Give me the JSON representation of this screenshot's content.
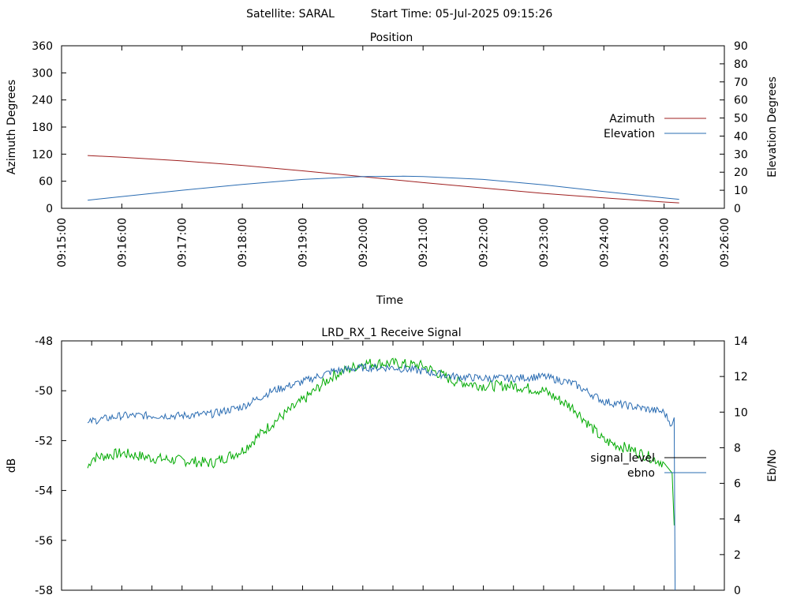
{
  "header": {
    "satellite": "Satellite: SARAL",
    "start_time": "Start Time: 05-Jul-2025 09:15:26"
  },
  "chart_data": [
    {
      "type": "line",
      "title": "Position",
      "xlabel": "Time",
      "ylabel": "Azimuth Degrees",
      "y2label": "Elevation Degrees",
      "xlim": [
        "09:15:00",
        "09:26:00"
      ],
      "x_ticks": [
        "09:15:00",
        "09:16:00",
        "09:17:00",
        "09:18:00",
        "09:19:00",
        "09:20:00",
        "09:21:00",
        "09:22:00",
        "09:23:00",
        "09:24:00",
        "09:25:00",
        "09:26:00"
      ],
      "ylim": [
        0,
        360
      ],
      "y_ticks": [
        0,
        60,
        120,
        180,
        240,
        300,
        360
      ],
      "y2lim": [
        0,
        90
      ],
      "y2_ticks": [
        0,
        10,
        20,
        30,
        40,
        50,
        60,
        70,
        80,
        90
      ],
      "legend_position": "right",
      "series": [
        {
          "name": "Azimuth",
          "axis": "left",
          "color": "#9f1f1f",
          "x": [
            "09:15:26",
            "09:16:00",
            "09:17:00",
            "09:18:00",
            "09:19:00",
            "09:20:00",
            "09:21:00",
            "09:22:00",
            "09:23:00",
            "09:24:00",
            "09:25:00",
            "09:25:15"
          ],
          "values": [
            117,
            113,
            105,
            95,
            83,
            70,
            57,
            45,
            33,
            23,
            14,
            12
          ]
        },
        {
          "name": "Elevation",
          "axis": "right",
          "color": "#2a6cb2",
          "x": [
            "09:15:26",
            "09:16:00",
            "09:17:00",
            "09:18:00",
            "09:19:00",
            "09:20:00",
            "09:20:40",
            "09:21:00",
            "09:22:00",
            "09:23:00",
            "09:24:00",
            "09:25:00",
            "09:25:15"
          ],
          "values": [
            4.5,
            6.5,
            10,
            13.2,
            16,
            17.6,
            17.8,
            17.6,
            16,
            13,
            9.3,
            5.8,
            5
          ]
        }
      ]
    },
    {
      "type": "line",
      "title": "LRD_RX_1 Receive Signal",
      "xlabel": "",
      "ylabel": "dB",
      "y2label": "Eb/No",
      "xlim": [
        "09:15:00",
        "09:26:00"
      ],
      "ylim": [
        -58,
        -48
      ],
      "y_ticks": [
        -58,
        -56,
        -54,
        -52,
        -50,
        -48
      ],
      "y2lim": [
        0,
        14
      ],
      "y2_ticks": [
        0,
        2,
        4,
        6,
        8,
        10,
        12,
        14
      ],
      "legend_position": "right",
      "series": [
        {
          "name": "signal_level",
          "axis": "left",
          "color": "#00aa00",
          "legend_color": "#000000",
          "x": [
            "09:15:26",
            "09:15:30",
            "09:16:00",
            "09:16:30",
            "09:17:00",
            "09:17:30",
            "09:18:00",
            "09:18:30",
            "09:19:00",
            "09:19:30",
            "09:20:00",
            "09:20:30",
            "09:21:00",
            "09:21:30",
            "09:22:00",
            "09:22:30",
            "09:23:00",
            "09:23:30",
            "09:24:00",
            "09:24:30",
            "09:25:00",
            "09:25:08",
            "09:25:10"
          ],
          "values": [
            -53.1,
            -52.7,
            -52.5,
            -52.7,
            -52.8,
            -52.9,
            -52.4,
            -51.3,
            -50.4,
            -49.4,
            -48.9,
            -48.9,
            -49.0,
            -49.6,
            -49.8,
            -49.8,
            -50.0,
            -50.7,
            -52.0,
            -52.4,
            -52.9,
            -53.3,
            -55.4
          ]
        },
        {
          "name": "ebno",
          "axis": "right",
          "color": "#2a6cb2",
          "x": [
            "09:15:26",
            "09:15:30",
            "09:16:00",
            "09:16:30",
            "09:17:00",
            "09:17:30",
            "09:18:00",
            "09:18:30",
            "09:19:00",
            "09:19:30",
            "09:20:00",
            "09:20:30",
            "09:21:00",
            "09:21:30",
            "09:22:00",
            "09:22:30",
            "09:23:00",
            "09:23:30",
            "09:24:00",
            "09:24:30",
            "09:25:00",
            "09:25:05",
            "09:25:08",
            "09:25:10",
            "09:25:11"
          ],
          "values": [
            9.3,
            9.5,
            9.8,
            9.8,
            9.8,
            9.9,
            10.3,
            11.2,
            11.7,
            12.3,
            12.5,
            12.5,
            12.3,
            12.0,
            11.9,
            11.9,
            12.0,
            11.6,
            10.6,
            10.3,
            10.0,
            9.5,
            9.3,
            9.7,
            0
          ]
        }
      ]
    }
  ]
}
